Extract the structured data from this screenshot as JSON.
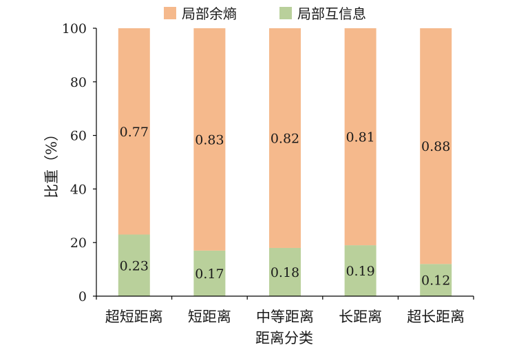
{
  "chart_data": {
    "type": "bar",
    "stacked": true,
    "categories": [
      "超短距离",
      "短距离",
      "中等距离",
      "长距离",
      "超长距离"
    ],
    "series": [
      {
        "name": "局部互信息",
        "values": [
          0.23,
          0.17,
          0.18,
          0.19,
          0.12
        ],
        "labels": [
          "0.23",
          "0.17",
          "0.18",
          "0.19",
          "0.12"
        ],
        "color": "#b9d09b"
      },
      {
        "name": "局部余熵",
        "values": [
          0.77,
          0.83,
          0.82,
          0.81,
          0.88
        ],
        "labels": [
          "0.77",
          "0.83",
          "0.82",
          "0.81",
          "0.88"
        ],
        "color": "#f5b98c"
      }
    ],
    "xlabel": "距离分类",
    "ylabel": "比重（%）",
    "ylim": [
      0,
      100
    ],
    "yticks": [
      "0",
      "20",
      "40",
      "60",
      "80",
      "100"
    ],
    "legend": {
      "position": "top",
      "order": [
        "局部余熵",
        "局部互信息"
      ]
    },
    "grid": false
  }
}
